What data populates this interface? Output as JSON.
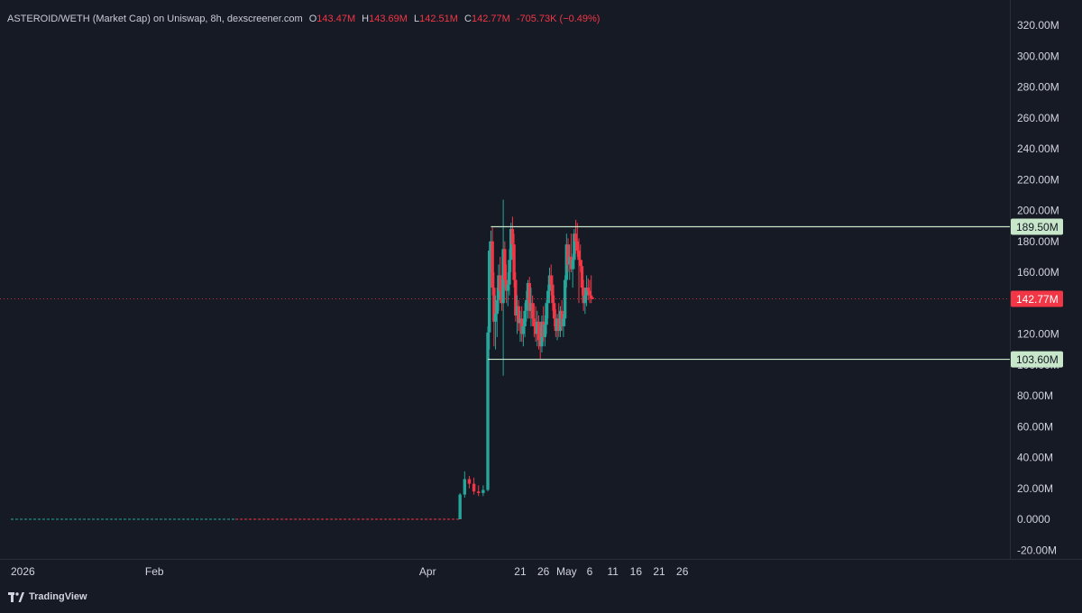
{
  "header": {
    "pair": "ASTEROID/WETH (Market Cap) on Uniswap, 8h, dexscreener.com",
    "o_label": "O",
    "o_value": "143.47M",
    "h_label": "H",
    "h_value": "143.69M",
    "l_label": "L",
    "l_value": "142.51M",
    "c_label": "C",
    "c_value": "142.77M",
    "change": "-705.73K (−0.49%)"
  },
  "branding": {
    "text": "TradingView",
    "icon": "tradingview-logo-icon"
  },
  "colors": {
    "background": "#161a25",
    "up": "#26a69a",
    "down": "#f23645",
    "level_line": "#c8e6c9",
    "price_tag": "#f23645",
    "text": "#d1d4dc"
  },
  "chart_data": {
    "type": "candlestick",
    "title": "ASTEROID/WETH (Market Cap) on Uniswap, 8h, dexscreener.com",
    "y_unit": "M",
    "ylim": [
      -25,
      330
    ],
    "y_ticks": [
      -20,
      0,
      20,
      40,
      60,
      80,
      100,
      120,
      140,
      160,
      180,
      200,
      220,
      240,
      260,
      280,
      300,
      320
    ],
    "y_tick_labels": [
      "-20.00M",
      "0.0000",
      "20.00M",
      "40.00M",
      "60.00M",
      "80.00M",
      "100.00M",
      "120.00M",
      "140.00M",
      "160.00M",
      "180.00M",
      "200.00M",
      "220.00M",
      "240.00M",
      "260.00M",
      "280.00M",
      "300.00M",
      "320.00M"
    ],
    "x_ticks": [
      {
        "label": "2026",
        "date": "2026-01-01"
      },
      {
        "label": "Feb",
        "date": "2026-02-01"
      },
      {
        "label": "Apr",
        "date": "2026-04-01"
      },
      {
        "label": "21",
        "date": "2026-04-21"
      },
      {
        "label": "26",
        "date": "2026-04-26"
      },
      {
        "label": "May",
        "date": "2026-05-01"
      },
      {
        "label": "6",
        "date": "2026-05-06"
      },
      {
        "label": "11",
        "date": "2026-05-11"
      },
      {
        "label": "16",
        "date": "2026-05-16"
      },
      {
        "label": "21",
        "date": "2026-05-21"
      },
      {
        "label": "26",
        "date": "2026-05-26"
      }
    ],
    "flat_segment": {
      "from": "2026-01-01",
      "to": "2026-04-08",
      "value": 0
    },
    "candles": [
      [
        "2026-04-08 00:00",
        0,
        17,
        0,
        16
      ],
      [
        "2026-04-09 00:00",
        16,
        31,
        14,
        26
      ],
      [
        "2026-04-10 00:00",
        26,
        28,
        20,
        23
      ],
      [
        "2026-04-11 00:00",
        23,
        27,
        16,
        18
      ],
      [
        "2026-04-12 00:00",
        18,
        22,
        15,
        17
      ],
      [
        "2026-04-13 00:00",
        17,
        22,
        15,
        19
      ],
      [
        "2026-04-14 00:00",
        19,
        125,
        18,
        121
      ],
      [
        "2026-04-14 08:00",
        121,
        180,
        110,
        174
      ],
      [
        "2026-04-14 16:00",
        174,
        187,
        160,
        180
      ],
      [
        "2026-04-15 00:00",
        180,
        189,
        145,
        150
      ],
      [
        "2026-04-15 08:00",
        150,
        160,
        112,
        128
      ],
      [
        "2026-04-15 16:00",
        128,
        145,
        110,
        133
      ],
      [
        "2026-04-16 00:00",
        133,
        150,
        118,
        142
      ],
      [
        "2026-04-16 08:00",
        142,
        165,
        135,
        158
      ],
      [
        "2026-04-16 16:00",
        158,
        170,
        140,
        148
      ],
      [
        "2026-04-17 00:00",
        148,
        155,
        135,
        140
      ],
      [
        "2026-04-17 08:00",
        140,
        207,
        93,
        175
      ],
      [
        "2026-04-17 16:00",
        175,
        180,
        150,
        155
      ],
      [
        "2026-04-18 00:00",
        155,
        165,
        140,
        148
      ],
      [
        "2026-04-18 08:00",
        148,
        160,
        138,
        152
      ],
      [
        "2026-04-18 16:00",
        152,
        175,
        145,
        168
      ],
      [
        "2026-04-19 00:00",
        168,
        192,
        160,
        188
      ],
      [
        "2026-04-19 08:00",
        188,
        196,
        170,
        178
      ],
      [
        "2026-04-19 16:00",
        178,
        185,
        150,
        155
      ],
      [
        "2026-04-20 00:00",
        155,
        160,
        128,
        132
      ],
      [
        "2026-04-20 08:00",
        132,
        145,
        120,
        138
      ],
      [
        "2026-04-20 16:00",
        138,
        142,
        122,
        127
      ],
      [
        "2026-04-21 00:00",
        127,
        135,
        115,
        130
      ],
      [
        "2026-04-21 08:00",
        130,
        138,
        115,
        120
      ],
      [
        "2026-04-21 16:00",
        120,
        130,
        112,
        125
      ],
      [
        "2026-04-22 00:00",
        125,
        140,
        118,
        135
      ],
      [
        "2026-04-22 08:00",
        135,
        148,
        128,
        142
      ],
      [
        "2026-04-22 16:00",
        142,
        155,
        130,
        153
      ],
      [
        "2026-04-23 00:00",
        153,
        157,
        130,
        135
      ],
      [
        "2026-04-23 08:00",
        135,
        150,
        125,
        140
      ],
      [
        "2026-04-23 16:00",
        140,
        145,
        125,
        130
      ],
      [
        "2026-04-24 00:00",
        130,
        140,
        118,
        125
      ],
      [
        "2026-04-24 08:00",
        125,
        138,
        115,
        120
      ],
      [
        "2026-04-24 16:00",
        120,
        135,
        112,
        128
      ],
      [
        "2026-04-25 00:00",
        128,
        132,
        110,
        116
      ],
      [
        "2026-04-25 08:00",
        116,
        125,
        104,
        112
      ],
      [
        "2026-04-25 16:00",
        112,
        132,
        108,
        128
      ],
      [
        "2026-04-26 00:00",
        128,
        138,
        115,
        118
      ],
      [
        "2026-04-26 08:00",
        118,
        132,
        112,
        126
      ],
      [
        "2026-04-26 16:00",
        126,
        142,
        120,
        140
      ],
      [
        "2026-04-27 00:00",
        140,
        152,
        130,
        148
      ],
      [
        "2026-04-27 08:00",
        148,
        163,
        140,
        158
      ],
      [
        "2026-04-27 16:00",
        158,
        165,
        145,
        152
      ],
      [
        "2026-04-28 00:00",
        152,
        158,
        135,
        140
      ],
      [
        "2026-04-28 08:00",
        140,
        145,
        125,
        130
      ],
      [
        "2026-04-28 16:00",
        130,
        136,
        118,
        122
      ],
      [
        "2026-04-29 00:00",
        122,
        133,
        116,
        130
      ],
      [
        "2026-04-29 08:00",
        130,
        140,
        118,
        122
      ],
      [
        "2026-04-29 16:00",
        122,
        138,
        118,
        135
      ],
      [
        "2026-04-30 00:00",
        135,
        142,
        122,
        125
      ],
      [
        "2026-04-30 08:00",
        125,
        133,
        118,
        130
      ],
      [
        "2026-04-30 16:00",
        130,
        158,
        125,
        155
      ],
      [
        "2026-05-01 00:00",
        155,
        185,
        150,
        178
      ],
      [
        "2026-05-01 08:00",
        178,
        182,
        160,
        165
      ],
      [
        "2026-05-01 16:00",
        165,
        178,
        155,
        170
      ],
      [
        "2026-05-02 00:00",
        170,
        185,
        160,
        162
      ],
      [
        "2026-05-02 08:00",
        162,
        172,
        150,
        168
      ],
      [
        "2026-05-02 16:00",
        168,
        188,
        162,
        185
      ],
      [
        "2026-05-03 00:00",
        185,
        194,
        172,
        180
      ],
      [
        "2026-05-03 08:00",
        180,
        192,
        170,
        174
      ],
      [
        "2026-05-03 16:00",
        174,
        182,
        140,
        168
      ],
      [
        "2026-05-04 00:00",
        168,
        178,
        160,
        164
      ],
      [
        "2026-05-04 08:00",
        164,
        168,
        145,
        150
      ],
      [
        "2026-05-04 16:00",
        150,
        155,
        135,
        140
      ],
      [
        "2026-05-05 00:00",
        140,
        150,
        133,
        145
      ],
      [
        "2026-05-05 08:00",
        145,
        158,
        138,
        150
      ],
      [
        "2026-05-05 16:00",
        150,
        156,
        142,
        148
      ],
      [
        "2026-05-06 00:00",
        148,
        155,
        140,
        145
      ],
      [
        "2026-05-06 08:00",
        145,
        158,
        140,
        143
      ],
      [
        "2026-05-06 16:00",
        143.47,
        143.69,
        142.51,
        142.77
      ]
    ],
    "levels": [
      {
        "value": 189.5,
        "label": "189.50M",
        "from": "2026-04-14 16:00"
      },
      {
        "value": 103.6,
        "label": "103.60M",
        "from": "2026-04-14 00:00"
      }
    ],
    "last_price": {
      "value": 142.77,
      "label": "142.77M"
    },
    "grid": false,
    "legend": "none"
  }
}
